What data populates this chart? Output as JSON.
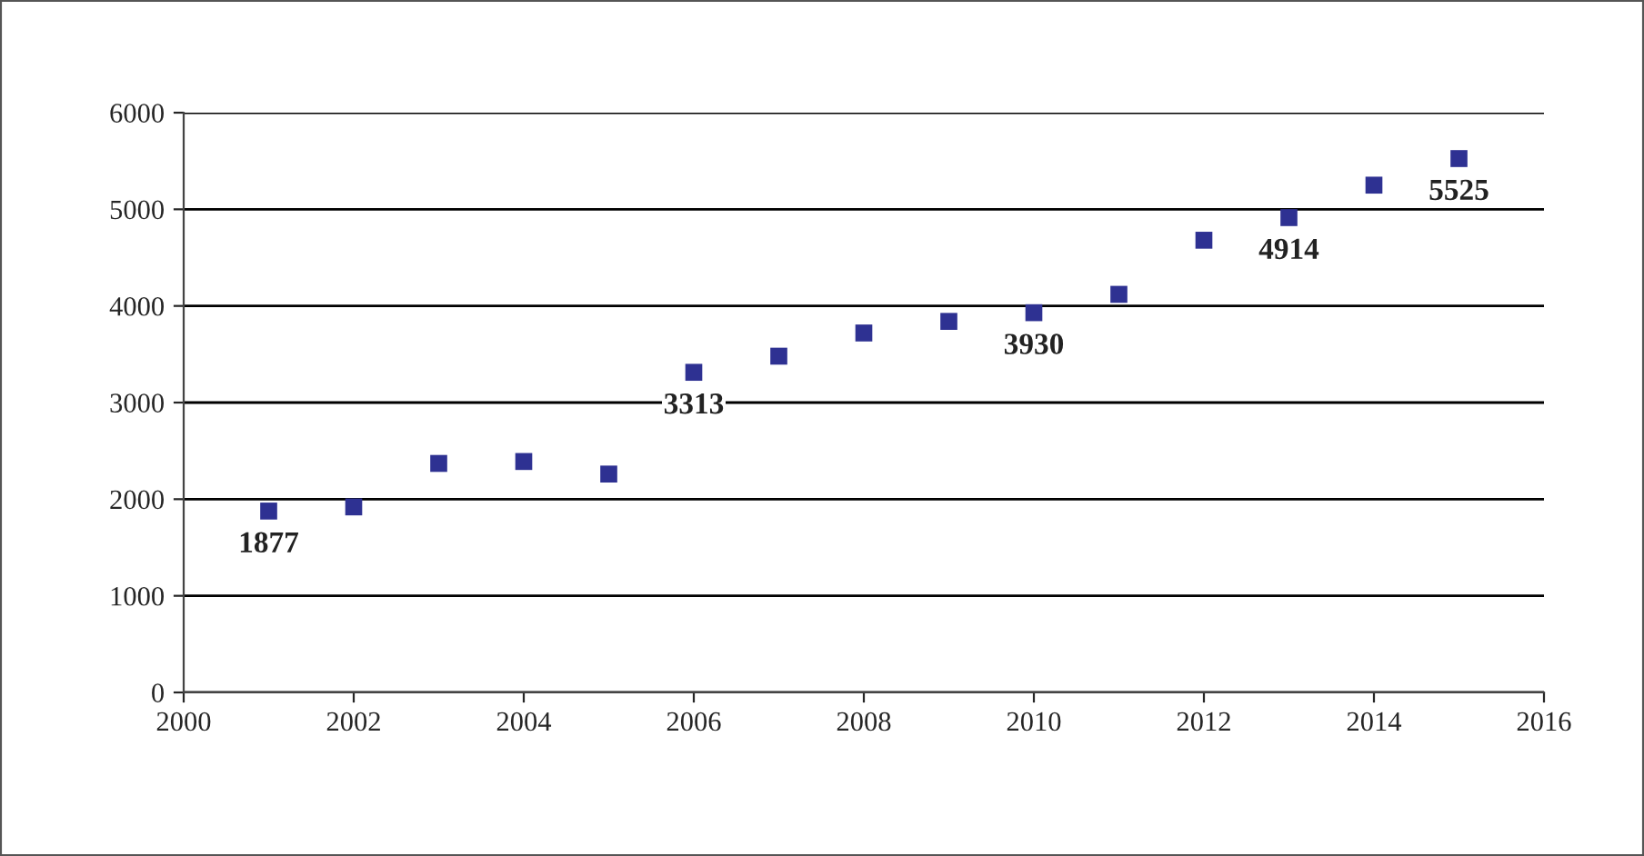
{
  "chart_data": {
    "type": "scatter",
    "x": [
      2001,
      2002,
      2003,
      2004,
      2005,
      2006,
      2007,
      2008,
      2009,
      2010,
      2011,
      2012,
      2013,
      2014,
      2015
    ],
    "series": [
      {
        "color": "#2e3192",
        "values": [
          1877,
          1920,
          2370,
          2390,
          2260,
          3313,
          3480,
          3720,
          3840,
          3930,
          4120,
          4680,
          4914,
          5250,
          5525
        ],
        "value_labels": [
          "1877",
          null,
          null,
          null,
          null,
          "3313",
          null,
          null,
          null,
          "3930",
          null,
          null,
          "4914",
          null,
          "5525"
        ]
      }
    ],
    "xlim": [
      2000,
      2016
    ],
    "xticks": [
      2000,
      2002,
      2004,
      2006,
      2008,
      2010,
      2012,
      2014,
      2016
    ],
    "ylim": [
      0,
      6000
    ],
    "yticks": [
      0,
      1000,
      2000,
      3000,
      4000,
      5000,
      6000
    ],
    "grid": "y",
    "marker": "square"
  }
}
